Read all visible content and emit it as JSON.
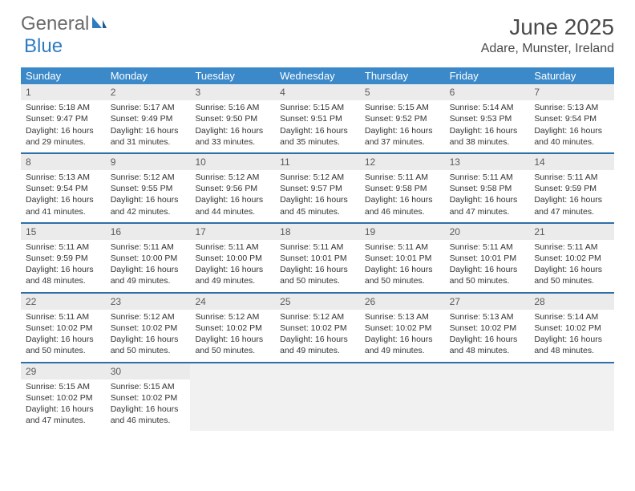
{
  "logo": {
    "text1": "General",
    "text2": "Blue"
  },
  "title": "June 2025",
  "location": "Adare, Munster, Ireland",
  "colors": {
    "header_bg": "#3b89c9",
    "header_text": "#ffffff",
    "week_divider": "#2e6fa8",
    "daynum_bg": "#ebebeb",
    "body_text": "#333333",
    "logo_gray": "#6b6b6b",
    "logo_blue": "#2e7cc0",
    "empty_bg": "#f1f1f1"
  },
  "dow": [
    "Sunday",
    "Monday",
    "Tuesday",
    "Wednesday",
    "Thursday",
    "Friday",
    "Saturday"
  ],
  "weeks": [
    [
      {
        "n": "1",
        "sr": "Sunrise: 5:18 AM",
        "ss": "Sunset: 9:47 PM",
        "d1": "Daylight: 16 hours",
        "d2": "and 29 minutes."
      },
      {
        "n": "2",
        "sr": "Sunrise: 5:17 AM",
        "ss": "Sunset: 9:49 PM",
        "d1": "Daylight: 16 hours",
        "d2": "and 31 minutes."
      },
      {
        "n": "3",
        "sr": "Sunrise: 5:16 AM",
        "ss": "Sunset: 9:50 PM",
        "d1": "Daylight: 16 hours",
        "d2": "and 33 minutes."
      },
      {
        "n": "4",
        "sr": "Sunrise: 5:15 AM",
        "ss": "Sunset: 9:51 PM",
        "d1": "Daylight: 16 hours",
        "d2": "and 35 minutes."
      },
      {
        "n": "5",
        "sr": "Sunrise: 5:15 AM",
        "ss": "Sunset: 9:52 PM",
        "d1": "Daylight: 16 hours",
        "d2": "and 37 minutes."
      },
      {
        "n": "6",
        "sr": "Sunrise: 5:14 AM",
        "ss": "Sunset: 9:53 PM",
        "d1": "Daylight: 16 hours",
        "d2": "and 38 minutes."
      },
      {
        "n": "7",
        "sr": "Sunrise: 5:13 AM",
        "ss": "Sunset: 9:54 PM",
        "d1": "Daylight: 16 hours",
        "d2": "and 40 minutes."
      }
    ],
    [
      {
        "n": "8",
        "sr": "Sunrise: 5:13 AM",
        "ss": "Sunset: 9:54 PM",
        "d1": "Daylight: 16 hours",
        "d2": "and 41 minutes."
      },
      {
        "n": "9",
        "sr": "Sunrise: 5:12 AM",
        "ss": "Sunset: 9:55 PM",
        "d1": "Daylight: 16 hours",
        "d2": "and 42 minutes."
      },
      {
        "n": "10",
        "sr": "Sunrise: 5:12 AM",
        "ss": "Sunset: 9:56 PM",
        "d1": "Daylight: 16 hours",
        "d2": "and 44 minutes."
      },
      {
        "n": "11",
        "sr": "Sunrise: 5:12 AM",
        "ss": "Sunset: 9:57 PM",
        "d1": "Daylight: 16 hours",
        "d2": "and 45 minutes."
      },
      {
        "n": "12",
        "sr": "Sunrise: 5:11 AM",
        "ss": "Sunset: 9:58 PM",
        "d1": "Daylight: 16 hours",
        "d2": "and 46 minutes."
      },
      {
        "n": "13",
        "sr": "Sunrise: 5:11 AM",
        "ss": "Sunset: 9:58 PM",
        "d1": "Daylight: 16 hours",
        "d2": "and 47 minutes."
      },
      {
        "n": "14",
        "sr": "Sunrise: 5:11 AM",
        "ss": "Sunset: 9:59 PM",
        "d1": "Daylight: 16 hours",
        "d2": "and 47 minutes."
      }
    ],
    [
      {
        "n": "15",
        "sr": "Sunrise: 5:11 AM",
        "ss": "Sunset: 9:59 PM",
        "d1": "Daylight: 16 hours",
        "d2": "and 48 minutes."
      },
      {
        "n": "16",
        "sr": "Sunrise: 5:11 AM",
        "ss": "Sunset: 10:00 PM",
        "d1": "Daylight: 16 hours",
        "d2": "and 49 minutes."
      },
      {
        "n": "17",
        "sr": "Sunrise: 5:11 AM",
        "ss": "Sunset: 10:00 PM",
        "d1": "Daylight: 16 hours",
        "d2": "and 49 minutes."
      },
      {
        "n": "18",
        "sr": "Sunrise: 5:11 AM",
        "ss": "Sunset: 10:01 PM",
        "d1": "Daylight: 16 hours",
        "d2": "and 50 minutes."
      },
      {
        "n": "19",
        "sr": "Sunrise: 5:11 AM",
        "ss": "Sunset: 10:01 PM",
        "d1": "Daylight: 16 hours",
        "d2": "and 50 minutes."
      },
      {
        "n": "20",
        "sr": "Sunrise: 5:11 AM",
        "ss": "Sunset: 10:01 PM",
        "d1": "Daylight: 16 hours",
        "d2": "and 50 minutes."
      },
      {
        "n": "21",
        "sr": "Sunrise: 5:11 AM",
        "ss": "Sunset: 10:02 PM",
        "d1": "Daylight: 16 hours",
        "d2": "and 50 minutes."
      }
    ],
    [
      {
        "n": "22",
        "sr": "Sunrise: 5:11 AM",
        "ss": "Sunset: 10:02 PM",
        "d1": "Daylight: 16 hours",
        "d2": "and 50 minutes."
      },
      {
        "n": "23",
        "sr": "Sunrise: 5:12 AM",
        "ss": "Sunset: 10:02 PM",
        "d1": "Daylight: 16 hours",
        "d2": "and 50 minutes."
      },
      {
        "n": "24",
        "sr": "Sunrise: 5:12 AM",
        "ss": "Sunset: 10:02 PM",
        "d1": "Daylight: 16 hours",
        "d2": "and 50 minutes."
      },
      {
        "n": "25",
        "sr": "Sunrise: 5:12 AM",
        "ss": "Sunset: 10:02 PM",
        "d1": "Daylight: 16 hours",
        "d2": "and 49 minutes."
      },
      {
        "n": "26",
        "sr": "Sunrise: 5:13 AM",
        "ss": "Sunset: 10:02 PM",
        "d1": "Daylight: 16 hours",
        "d2": "and 49 minutes."
      },
      {
        "n": "27",
        "sr": "Sunrise: 5:13 AM",
        "ss": "Sunset: 10:02 PM",
        "d1": "Daylight: 16 hours",
        "d2": "and 48 minutes."
      },
      {
        "n": "28",
        "sr": "Sunrise: 5:14 AM",
        "ss": "Sunset: 10:02 PM",
        "d1": "Daylight: 16 hours",
        "d2": "and 48 minutes."
      }
    ],
    [
      {
        "n": "29",
        "sr": "Sunrise: 5:15 AM",
        "ss": "Sunset: 10:02 PM",
        "d1": "Daylight: 16 hours",
        "d2": "and 47 minutes."
      },
      {
        "n": "30",
        "sr": "Sunrise: 5:15 AM",
        "ss": "Sunset: 10:02 PM",
        "d1": "Daylight: 16 hours",
        "d2": "and 46 minutes."
      },
      {
        "empty": true
      },
      {
        "empty": true
      },
      {
        "empty": true
      },
      {
        "empty": true
      },
      {
        "empty": true
      }
    ]
  ]
}
